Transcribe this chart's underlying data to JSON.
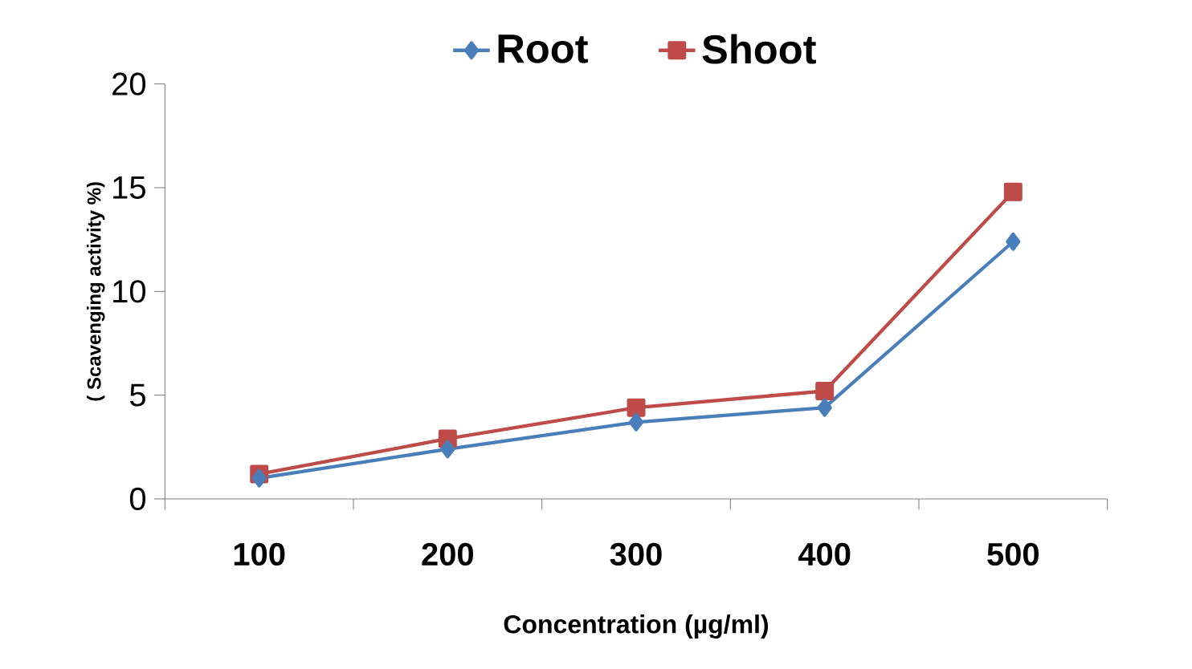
{
  "chart_data": {
    "type": "line",
    "xlabel": "Concentration (µg/ml)",
    "ylabel": "( Scavenging activity  %)",
    "categories": [
      "100",
      "200",
      "300",
      "400",
      "500"
    ],
    "series": [
      {
        "name": "Root",
        "color": "#4a7ebb",
        "marker": "diamond",
        "values": [
          1.0,
          2.4,
          3.7,
          4.4,
          12.4
        ]
      },
      {
        "name": "Shoot",
        "color": "#be4b48",
        "marker": "square",
        "values": [
          1.2,
          2.9,
          4.4,
          5.2,
          14.8
        ]
      }
    ],
    "ylim": [
      0,
      20
    ],
    "yticks": [
      0,
      5,
      10,
      15,
      20
    ],
    "legend": "top",
    "grid": false
  }
}
